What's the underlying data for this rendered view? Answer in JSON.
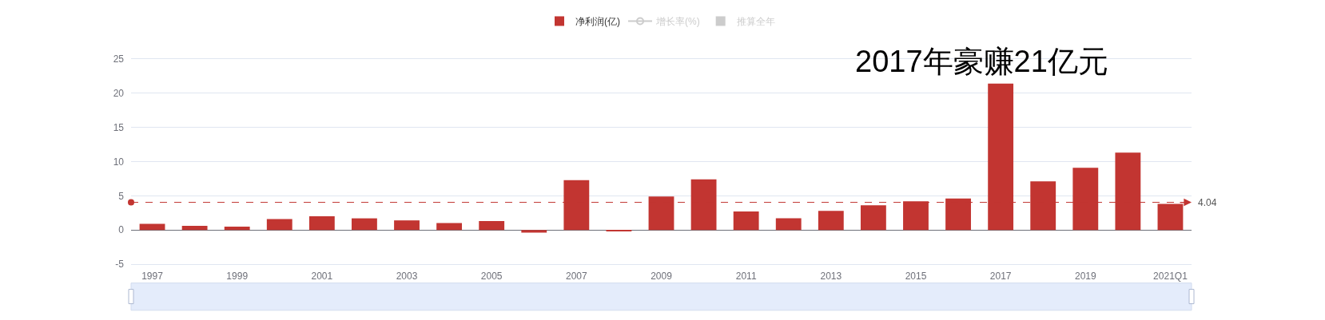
{
  "chart_data": {
    "type": "bar",
    "categories": [
      "1997",
      null,
      "1999",
      null,
      "2001",
      null,
      "2003",
      null,
      "2005",
      null,
      "2007",
      null,
      "2009",
      null,
      "2011",
      null,
      "2013",
      null,
      "2015",
      null,
      "2017",
      null,
      "2019",
      null,
      "2021Q1"
    ],
    "series": [
      {
        "name": "净利润(亿)",
        "color": "#c23531",
        "values": [
          0.9,
          0.6,
          0.5,
          1.6,
          2,
          1.7,
          1.4,
          1,
          1.3,
          -0.4,
          7.3,
          -0.2,
          4.9,
          7.4,
          2.7,
          1.7,
          2.8,
          3.6,
          4.2,
          4.6,
          21.4,
          7.1,
          9.1,
          11.3,
          3.8
        ]
      },
      {
        "name": "增长率(%)",
        "type": "line",
        "marker": "circle",
        "color": "#cccccc",
        "values": [
          null,
          null,
          null,
          null,
          null,
          null,
          null,
          null,
          null,
          null,
          null,
          null,
          null,
          null,
          null,
          null,
          null,
          null,
          null,
          null,
          null,
          null,
          null,
          null,
          null
        ]
      },
      {
        "name": "推算全年",
        "type": "bar",
        "color": "#cccccc",
        "values": [
          null,
          null,
          null,
          null,
          null,
          null,
          null,
          null,
          null,
          null,
          null,
          null,
          null,
          null,
          null,
          null,
          null,
          null,
          null,
          null,
          null,
          null,
          null,
          null,
          null
        ]
      }
    ],
    "ylim": [
      -5,
      25
    ],
    "yticks": [
      -5,
      0,
      5,
      10,
      15,
      20,
      25
    ],
    "grid": "y",
    "legend": "top",
    "ref_lines": [
      {
        "axis": "y",
        "value": 4.04,
        "label": "4.04",
        "color": "#c23531",
        "line_style": "dashed"
      }
    ],
    "annotations": [
      "2017年豪赚21亿元"
    ]
  }
}
